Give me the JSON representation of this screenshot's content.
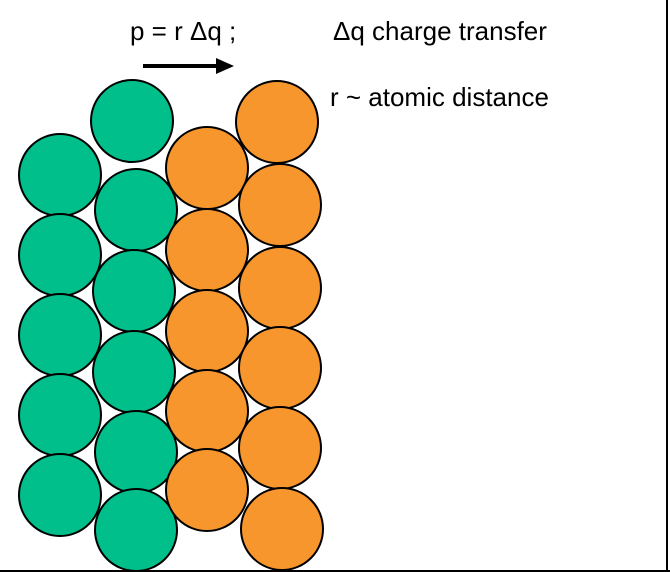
{
  "equation": "p = r Δq ;",
  "definitions": [
    "Δq charge transfer",
    "r ~ atomic distance"
  ]
}
